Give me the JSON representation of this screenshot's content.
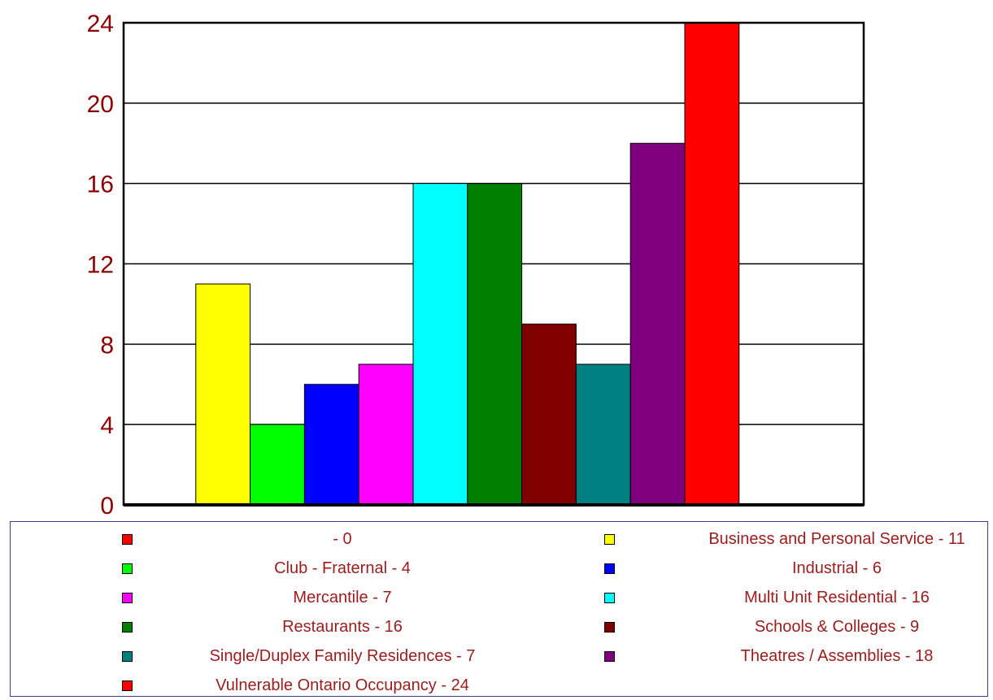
{
  "chart_data": {
    "type": "bar",
    "categories": [
      "",
      "Business and Personal Service",
      "Club - Fraternal",
      "Industrial",
      "Mercantile",
      "Multi Unit Residential",
      "Restaurants",
      "Schools & Colleges",
      "Single/Duplex Family Residences",
      "Theatres / Assemblies",
      "Vulnerable Ontario Occupancy"
    ],
    "values": [
      0,
      11,
      4,
      6,
      7,
      16,
      16,
      9,
      7,
      18,
      24
    ],
    "colors": [
      "#ff0000",
      "#ffff00",
      "#00ff00",
      "#0000ff",
      "#ff00ff",
      "#00ffff",
      "#008000",
      "#800000",
      "#008080",
      "#800080",
      "#ff0000"
    ],
    "ylim": [
      0,
      24
    ],
    "yticks": [
      "0",
      "4",
      "8",
      "12",
      "16",
      "20",
      "24"
    ],
    "grid": true,
    "legend_position": "bottom",
    "legend": [
      {
        "label": "- 0",
        "color": "#ff0000"
      },
      {
        "label": "Business and Personal Service - 11",
        "color": "#ffff00"
      },
      {
        "label": "Club - Fraternal - 4",
        "color": "#00ff00"
      },
      {
        "label": "Industrial - 6",
        "color": "#0000ff"
      },
      {
        "label": "Mercantile - 7",
        "color": "#ff00ff"
      },
      {
        "label": "Multi Unit Residential - 16",
        "color": "#00ffff"
      },
      {
        "label": "Restaurants - 16",
        "color": "#008000"
      },
      {
        "label": "Schools & Colleges - 9",
        "color": "#800000"
      },
      {
        "label": "Single/Duplex Family Residences - 7",
        "color": "#008080"
      },
      {
        "label": "Theatres / Assemblies - 18",
        "color": "#800080"
      },
      {
        "label": "Vulnerable Ontario Occupancy - 24",
        "color": "#ff0000"
      }
    ]
  }
}
